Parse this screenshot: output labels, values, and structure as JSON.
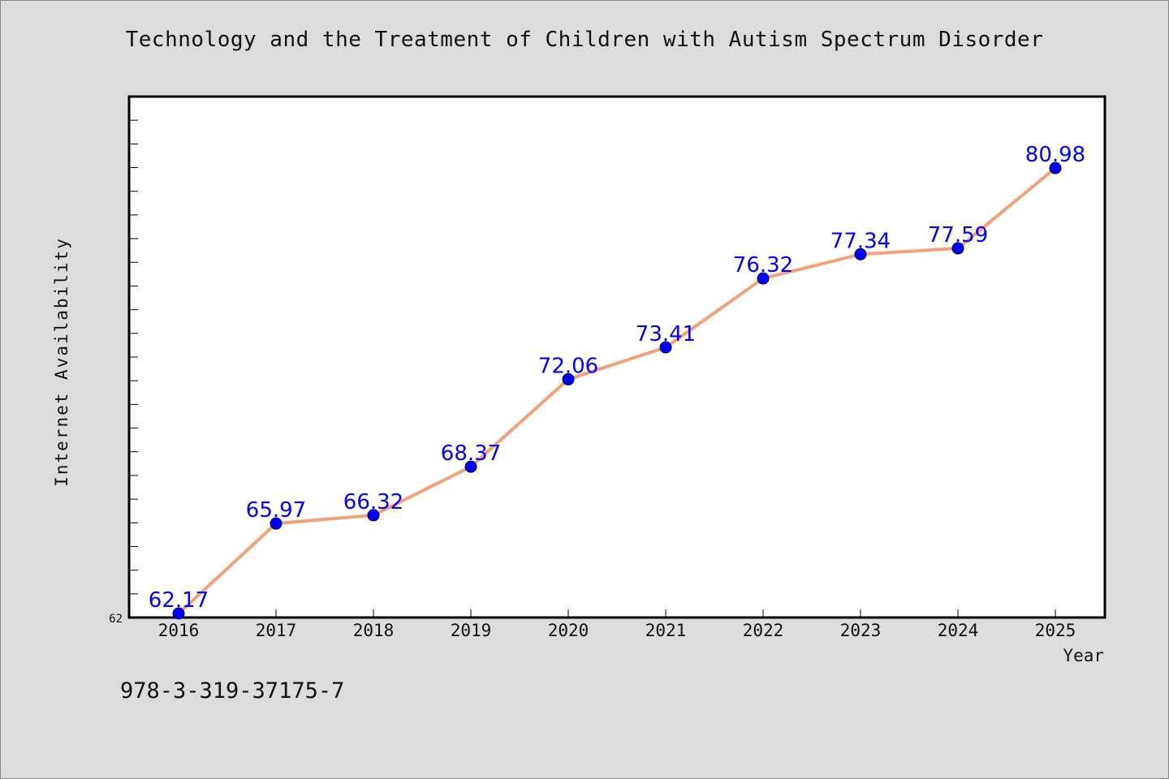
{
  "colors": {
    "background": "#dcdcdc",
    "plot_background": "#ffffff",
    "line": "#f4a07a",
    "marker": "#0000ff",
    "data_label": "#0000ff",
    "text": "#111111"
  },
  "footer": {
    "isbn": "978-3-319-37175-7"
  },
  "chart_data": {
    "type": "line",
    "title": "Technology and the Treatment of Children with Autism Spectrum Disorder",
    "xlabel": "Year",
    "ylabel": "Internet Availability",
    "categories": [
      "2016",
      "2017",
      "2018",
      "2019",
      "2020",
      "2021",
      "2022",
      "2023",
      "2024",
      "2025"
    ],
    "series": [
      {
        "values": [
          62.17,
          65.97,
          66.32,
          68.37,
          72.06,
          73.41,
          76.32,
          77.34,
          77.59,
          80.98
        ]
      }
    ],
    "data_labels": [
      "62.17",
      "65.97",
      "66.32",
      "68.37",
      "72.06",
      "73.41",
      "76.32",
      "77.34",
      "77.59",
      "80.98"
    ],
    "y_tick_labels": [
      "62"
    ],
    "ylim": [
      62,
      84
    ],
    "grid": false,
    "legend": "none"
  }
}
